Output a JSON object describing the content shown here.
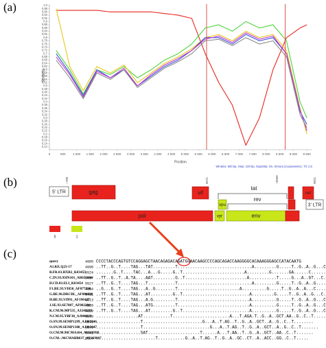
{
  "panels": [
    "(a)",
    "(b)",
    "(c)"
  ],
  "chart_data": {
    "type": "line",
    "x_label": "Position",
    "y_label": "Similarity",
    "note": "Window: 500 bp, Step: 100 bp, GapStrip: On, Kimura (2-parameter), T/t: 2,0",
    "x": [
      250,
      750,
      1250,
      1750,
      2250,
      2750,
      3250,
      3750,
      4250,
      4750,
      5250,
      5750,
      6250,
      6750,
      7250,
      7750,
      8250,
      8750,
      9250,
      9500
    ],
    "series": [
      {
        "color": "#e8251c",
        "values": [
          0.97,
          0.97,
          0.97,
          0.97,
          0.96,
          0.96,
          0.96,
          0.96,
          0.95,
          0.94,
          0.92,
          0.7,
          0.52,
          0.38,
          0.13,
          0.3,
          0.6,
          0.8,
          0.86,
          0.88
        ]
      },
      {
        "color": "#4cd43b",
        "values": [
          0.72,
          0.6,
          0.45,
          0.6,
          0.57,
          0.62,
          0.55,
          0.6,
          0.66,
          0.7,
          0.76,
          0.86,
          0.88,
          0.84,
          0.9,
          0.86,
          0.88,
          0.78,
          0.4,
          0.3
        ]
      },
      {
        "color": "#e6c81a",
        "values": [
          0.98,
          0.62,
          0.47,
          0.62,
          0.58,
          0.63,
          0.52,
          0.58,
          0.64,
          0.68,
          0.73,
          0.8,
          0.82,
          0.78,
          0.84,
          0.8,
          0.82,
          0.72,
          0.36,
          0.2
        ]
      },
      {
        "color": "#3a4fd8",
        "values": [
          0.7,
          0.58,
          0.44,
          0.6,
          0.55,
          0.6,
          0.5,
          0.56,
          0.62,
          0.66,
          0.72,
          0.8,
          0.8,
          0.76,
          0.82,
          0.78,
          0.8,
          0.7,
          0.34,
          0.26
        ]
      },
      {
        "color": "#c23ad0",
        "values": [
          0.68,
          0.57,
          0.43,
          0.59,
          0.55,
          0.61,
          0.5,
          0.57,
          0.63,
          0.67,
          0.72,
          0.79,
          0.81,
          0.77,
          0.83,
          0.79,
          0.81,
          0.7,
          0.35,
          0.22
        ]
      },
      {
        "color": "#8a8a8a",
        "values": [
          0.66,
          0.55,
          0.42,
          0.58,
          0.54,
          0.6,
          0.49,
          0.55,
          0.61,
          0.65,
          0.7,
          0.78,
          0.79,
          0.75,
          0.8,
          0.76,
          0.78,
          0.68,
          0.32,
          0.24
        ]
      }
    ],
    "vertical_lines": [
      5800,
      8700
    ],
    "vertical_line_color": "#d42a20",
    "xlim": [
      0,
      9700
    ],
    "xticks": [
      0,
      500,
      {
        "value": 1000,
        "label": "1 000"
      },
      {
        "value": 1500,
        "label": "1 500"
      },
      {
        "value": 2000,
        "label": "2 000"
      },
      {
        "value": 2500,
        "label": "2 500"
      },
      {
        "value": 3000,
        "label": "3 000"
      },
      {
        "value": 3500,
        "label": "3 500"
      },
      {
        "value": 4000,
        "label": "4 000"
      },
      {
        "value": 4500,
        "label": "4 500"
      },
      {
        "value": 5000,
        "label": "5 000"
      },
      {
        "value": 5500,
        "label": "5 500"
      },
      {
        "value": 6000,
        "label": "6 000"
      },
      {
        "value": 6500,
        "label": "6 500"
      },
      {
        "value": 7000,
        "label": "7 000"
      },
      {
        "value": 7500,
        "label": "7 500"
      },
      {
        "value": 8000,
        "label": "8 000"
      },
      {
        "value": 8500,
        "label": "8 500"
      },
      {
        "value": 9000,
        "label": "9 000"
      },
      {
        "value": 9500,
        "label": "9 500"
      }
    ],
    "ylim": [
      0.12,
      1.0
    ],
    "yticks": [
      {
        "value": 1.0,
        "label": "1,0"
      },
      {
        "value": 0.98,
        "label": "0,98"
      },
      {
        "value": 0.96,
        "label": "0,96"
      },
      {
        "value": 0.94,
        "label": "0,94"
      },
      {
        "value": 0.92,
        "label": "0,92"
      },
      {
        "value": 0.9,
        "label": "0,9"
      },
      {
        "value": 0.88,
        "label": "0,88"
      },
      {
        "value": 0.86,
        "label": "0,86"
      },
      {
        "value": 0.84,
        "label": "0,84"
      },
      {
        "value": 0.82,
        "label": "0,82"
      },
      {
        "value": 0.8,
        "label": "0,8"
      },
      {
        "value": 0.78,
        "label": "0,78"
      },
      {
        "value": 0.76,
        "label": "0,76"
      },
      {
        "value": 0.74,
        "label": "0,74"
      },
      {
        "value": 0.72,
        "label": "0,72"
      },
      {
        "value": 0.7,
        "label": "0,7"
      },
      {
        "value": 0.68,
        "label": "0,68"
      },
      {
        "value": 0.66,
        "label": "0,66"
      },
      {
        "value": 0.64,
        "label": "0,64"
      },
      {
        "value": 0.62,
        "label": "0,62"
      },
      {
        "value": 0.6,
        "label": "0,6"
      },
      {
        "value": 0.58,
        "label": "0,58"
      },
      {
        "value": 0.56,
        "label": "0,56"
      },
      {
        "value": 0.54,
        "label": "0,54"
      },
      {
        "value": 0.52,
        "label": "0,52"
      },
      {
        "value": 0.5,
        "label": "0,5"
      },
      {
        "value": 0.48,
        "label": "0,48"
      },
      {
        "value": 0.46,
        "label": "0,46"
      },
      {
        "value": 0.44,
        "label": "0,44"
      },
      {
        "value": 0.42,
        "label": "0,42"
      },
      {
        "value": 0.4,
        "label": "0,4"
      },
      {
        "value": 0.38,
        "label": "0,38"
      },
      {
        "value": 0.36,
        "label": "0,36"
      },
      {
        "value": 0.34,
        "label": "0,34"
      },
      {
        "value": 0.32,
        "label": "0,32"
      },
      {
        "value": 0.3,
        "label": "0,3"
      },
      {
        "value": 0.28,
        "label": "0,28"
      },
      {
        "value": 0.26,
        "label": "0,26"
      },
      {
        "value": 0.24,
        "label": "0,24"
      },
      {
        "value": 0.22,
        "label": "0,22"
      },
      {
        "value": 0.2,
        "label": "0,2"
      },
      {
        "value": 0.18,
        "label": "0,18"
      },
      {
        "value": 0.16,
        "label": "0,16"
      },
      {
        "value": 0.14,
        "label": "0,14"
      },
      {
        "value": 0.12,
        "label": "0,12"
      }
    ]
  },
  "genome_map": {
    "genes": [
      "5' LTR",
      "gag",
      "vif",
      "tat",
      "nef",
      "vpu",
      "rev",
      "3' LTR",
      "pol",
      "vpr",
      "env"
    ],
    "positions": [
      "~790",
      "5571",
      "~8369",
      "9021"
    ],
    "legend": [
      "0",
      "1"
    ]
  },
  "alignment": {
    "rows": [
      {
        "name": "query",
        "start": "4985",
        "sequence": "CCCCTACCCAGTGTCCAGGAGCTAACAGAGACAGATGGAACAAGCCCCAGCAGACCAAGGGGCACAAAGGGAGCCATACAATG"
      },
      {
        "name": "A1.KE.Q23-17",
        "start": "4998",
        "sequence": "..TT..G..T....TAG...TAT.........T..............................A.........G.....T..G..A..G...C...."
      },
      {
        "name": "B.FR.83.HXB2_K03455",
        "start": "5524",
        "sequence": ".......G..T....TAC...A...G.....G..T.........................A.........G.......GA......C......"
      },
      {
        "name": "C.IN.93.93IN101_AB023804",
        "start": "5437",
        "sequence": "..TT..G..T..A.TA....AAT.........G..T.........................A...........T.....G...A..GT...C..."
      },
      {
        "name": "D.CD.83.ELI_K03454",
        "start": "5527",
        "sequence": "..TT..G..T....TAG...T...........T..............................A.........G.....T..G..A..G......"
      },
      {
        "name": "F1.BE.93.VI850_AF077336",
        "start": "4864",
        "sequence": "..G...G..T....TAG...A..G........T.........................A..........G.....T..G..A..A...C....."
      },
      {
        "name": "G.BE.96.DRCBL_AF084936",
        "start": "5481",
        "sequence": "..TT..G..T....TAG...AT.........G..T...........................A.........G.....T..G..A..G...C...."
      },
      {
        "name": "H.BE.93.VI991_AF190127",
        "start": "4913",
        "sequence": "..TT..G..T....TAG...A.G.........T.............................A..........G.....T..G..A..G...C...."
      },
      {
        "name": "J.SE.93.SE7887_AF082394",
        "start": "4828",
        "sequence": "..TT..G..T....TAG...ATG.........T.............................A..........G.....T..G..A..G...C...."
      },
      {
        "name": "K.CM.96.MP535_AJ249239",
        "start": "4819",
        "sequence": "..TT..G..T....TAG...AT.........G..T...........................A..........G.....T..G..A..G...C...."
      },
      {
        "name": "N.CM.95.YBF30_AJ006022",
        "start": "5579",
        "sequence": ".................AT...........T.......................A...T.AGA.T..G..A..GCT.AA..G..C..T....."
      },
      {
        "name": "O.SN.99.SEMP1299_AJ302646",
        "start": "5578",
        "sequence": "..................T........................G...A..T.AG..T..G..A..GCT..A..G..C..T........"
      },
      {
        "name": "O.SN.99.SEMP1300_AJ302647",
        "start": "5570",
        "sequence": "..................T...........................G...A..T.AG..T..G..A..GCT..A..G..C..T......."
      },
      {
        "name": "O.CM.98.98CMA104_AY618998",
        "start": "5441",
        "sequence": "..................SAT.....................T......A...T.AA..T..G..A..GCT..AA..C..T......."
      },
      {
        "name": "O.CM.-.96CMABB637_AY169807",
        "start": "5014",
        "sequence": "........................T...........G..A..T.AG..T..G..A..GC..CT..A..ACC..GG..C..T....."
      }
    ]
  }
}
